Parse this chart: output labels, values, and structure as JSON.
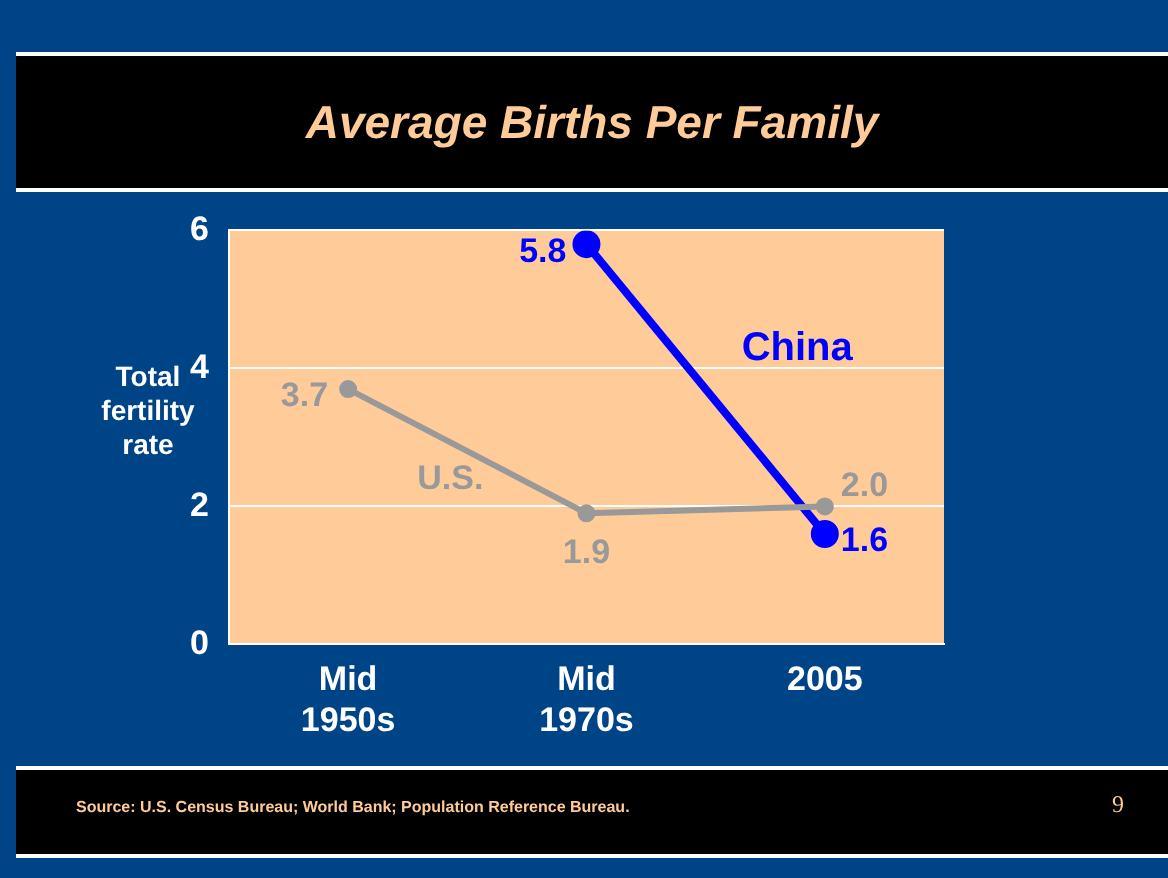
{
  "chart_data": {
    "type": "line",
    "title": "Average Births Per Family",
    "ylabel": "Total fertility rate",
    "categories": [
      "Mid\n1950s",
      "Mid\n1970s",
      "2005"
    ],
    "series": [
      {
        "name": "U.S.",
        "color": "#999999",
        "values": [
          3.7,
          1.9,
          2.0
        ],
        "value_labels": [
          "3.7",
          "1.9",
          "2.0"
        ]
      },
      {
        "name": "China",
        "color": "#0000ff",
        "values": [
          null,
          5.8,
          1.6
        ],
        "value_labels": [
          null,
          "5.8",
          "1.6"
        ]
      }
    ],
    "ylim": [
      0,
      6
    ],
    "yticks": [
      0,
      2,
      4,
      6
    ],
    "grid": "y",
    "legend": false,
    "marker": "circle",
    "line_style": "solid",
    "annotations": [
      "Source:  U.S. Census Bureau; World Bank; Population Reference Bureau.",
      "9"
    ]
  }
}
